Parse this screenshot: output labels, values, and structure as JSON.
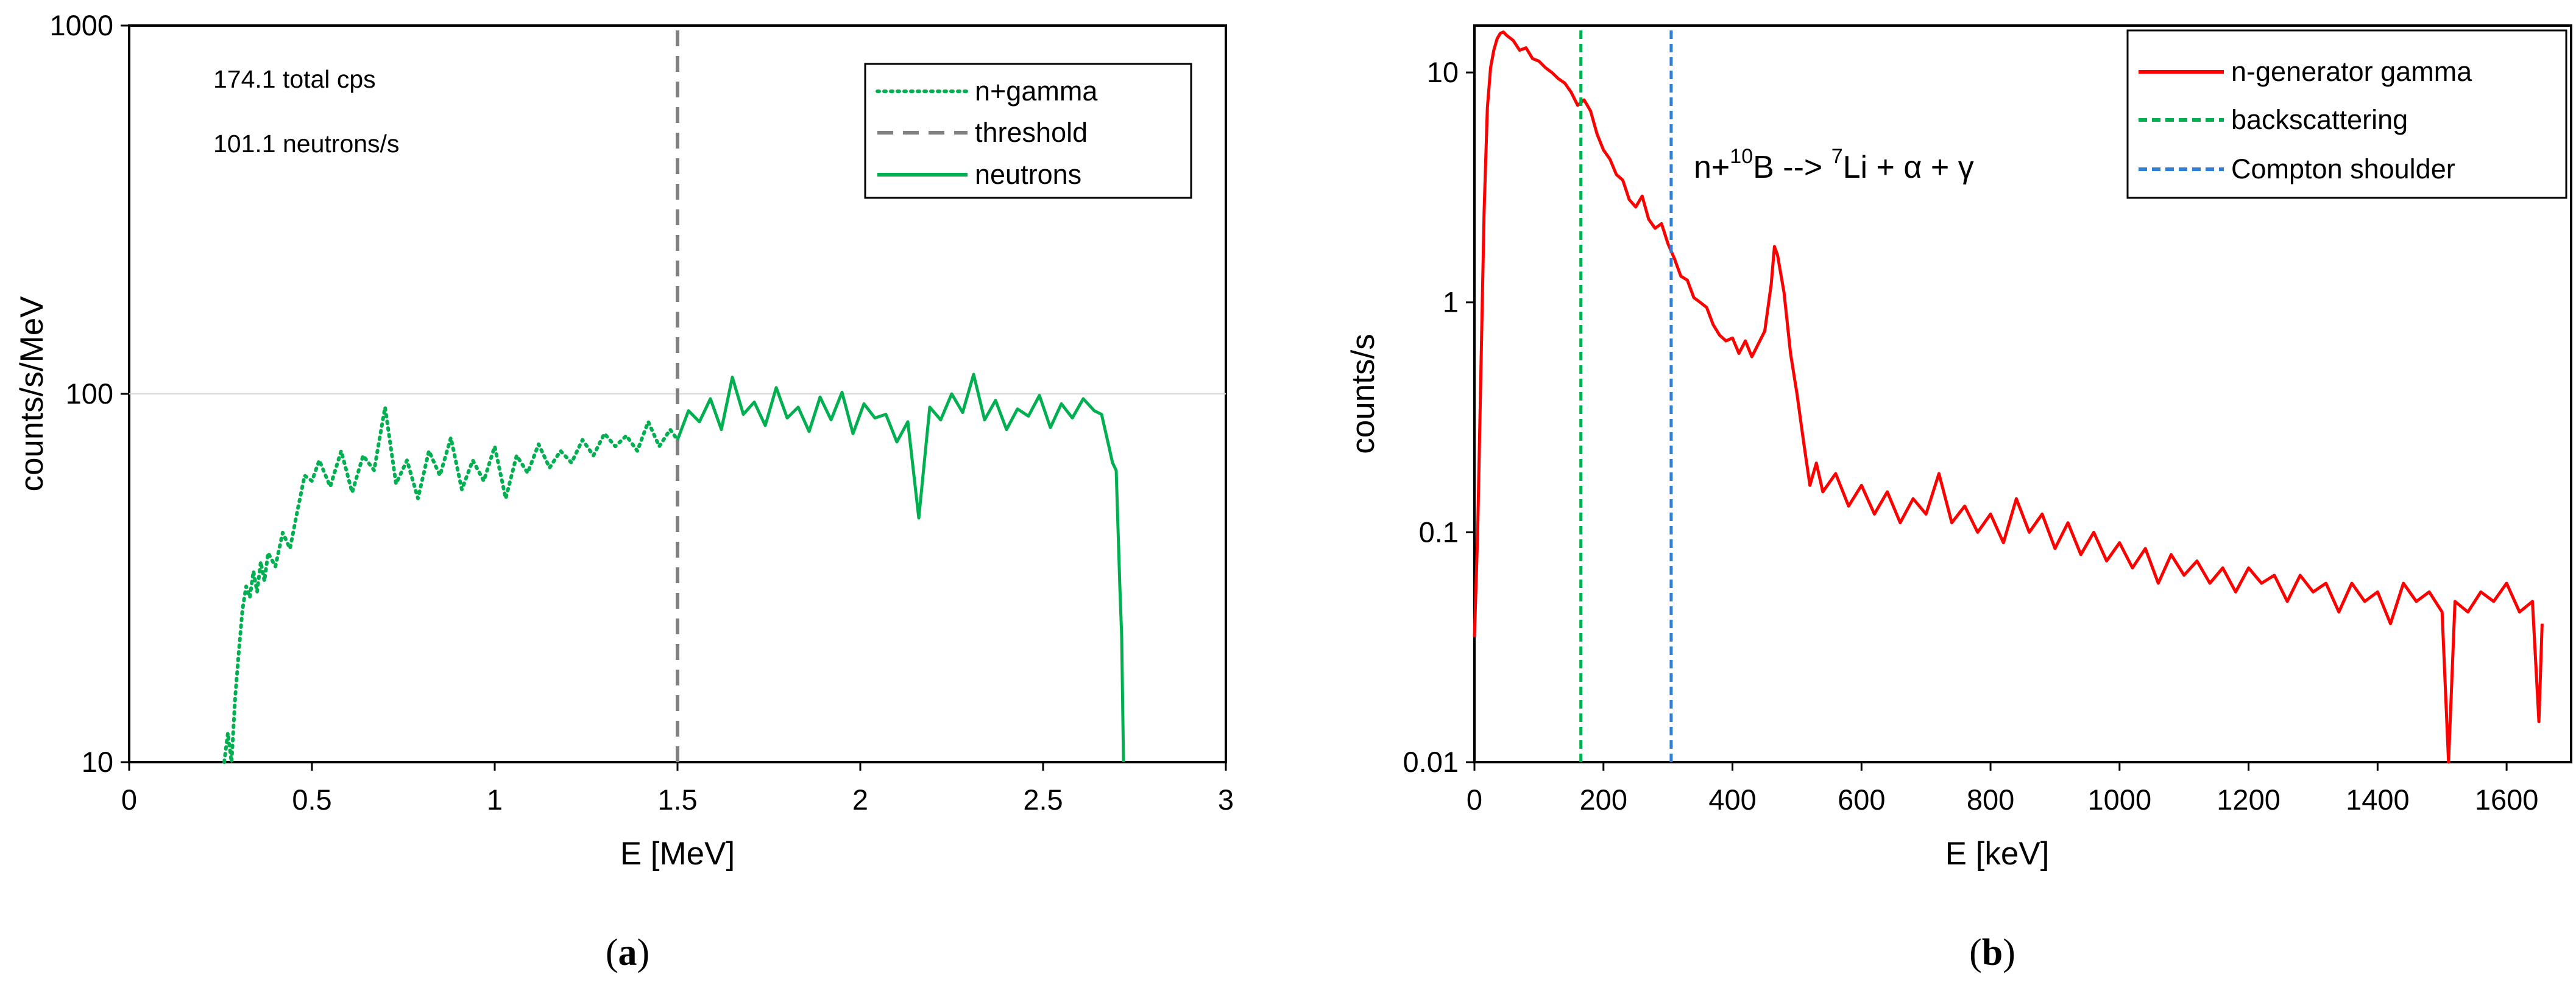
{
  "chart_data": [
    {
      "type": "line",
      "panel": "a",
      "title": "",
      "xlabel": "E [MeV]",
      "ylabel": "counts/s/MeV",
      "xlim": [
        0,
        3
      ],
      "ylim": [
        10,
        1000
      ],
      "yscale": "log",
      "xticks": [
        "0",
        "0.5",
        "1",
        "1.5",
        "2",
        "2.5",
        "3"
      ],
      "xtick_values": [
        0,
        0.5,
        1,
        1.5,
        2,
        2.5,
        3
      ],
      "yticks": [
        "10",
        "100",
        "1000"
      ],
      "ytick_values": [
        10,
        100,
        1000
      ],
      "annotations": [
        "174.1 total cps",
        "101.1 neutrons/s"
      ],
      "legend_position": "top-right",
      "series": [
        {
          "name": "n+gamma",
          "style": "dotted",
          "color": "#00b050",
          "x": [
            0.26,
            0.27,
            0.28,
            0.29,
            0.3,
            0.31,
            0.32,
            0.33,
            0.34,
            0.35,
            0.36,
            0.37,
            0.38,
            0.4,
            0.42,
            0.44,
            0.46,
            0.48,
            0.5,
            0.52,
            0.55,
            0.58,
            0.61,
            0.64,
            0.67,
            0.7,
            0.73,
            0.76,
            0.79,
            0.82,
            0.85,
            0.88,
            0.91,
            0.94,
            0.97,
            1.0,
            1.03,
            1.06,
            1.09,
            1.12,
            1.15,
            1.18,
            1.21,
            1.24,
            1.27,
            1.3,
            1.33,
            1.36,
            1.39,
            1.42,
            1.45,
            1.48,
            1.5
          ],
          "y": [
            10,
            12,
            10,
            15,
            20,
            26,
            30,
            28,
            33,
            29,
            35,
            31,
            37,
            34,
            42,
            38,
            48,
            60,
            58,
            66,
            56,
            70,
            54,
            68,
            62,
            92,
            57,
            66,
            52,
            70,
            60,
            76,
            55,
            66,
            58,
            72,
            52,
            68,
            61,
            73,
            63,
            70,
            65,
            75,
            68,
            78,
            72,
            77,
            70,
            84,
            72,
            80,
            75
          ]
        },
        {
          "name": "threshold",
          "style": "dashed",
          "color": "#808080",
          "x": [
            1.5,
            1.5
          ],
          "y": [
            10,
            1000
          ]
        },
        {
          "name": "neutrons",
          "style": "solid",
          "color": "#00b050",
          "x": [
            1.5,
            1.53,
            1.56,
            1.59,
            1.62,
            1.65,
            1.68,
            1.71,
            1.74,
            1.77,
            1.8,
            1.83,
            1.86,
            1.89,
            1.92,
            1.95,
            1.98,
            2.01,
            2.04,
            2.07,
            2.1,
            2.13,
            2.16,
            2.19,
            2.22,
            2.25,
            2.28,
            2.31,
            2.34,
            2.37,
            2.4,
            2.43,
            2.46,
            2.49,
            2.52,
            2.55,
            2.58,
            2.61,
            2.64,
            2.66,
            2.68,
            2.69,
            2.7,
            2.71,
            2.715,
            2.72
          ],
          "y": [
            75,
            90,
            84,
            97,
            80,
            111,
            88,
            95,
            82,
            104,
            86,
            92,
            79,
            98,
            85,
            101,
            78,
            94,
            86,
            88,
            74,
            84,
            46,
            92,
            85,
            100,
            89,
            113,
            85,
            96,
            80,
            91,
            87,
            99,
            81,
            94,
            86,
            97,
            90,
            88,
            72,
            65,
            62,
            30,
            22,
            10
          ]
        }
      ]
    },
    {
      "type": "line",
      "panel": "b",
      "title": "",
      "xlabel": "E [keV]",
      "ylabel": "counts/s",
      "xlim": [
        0,
        1700
      ],
      "ylim": [
        0.01,
        16
      ],
      "yscale": "log",
      "xticks": [
        "0",
        "200",
        "400",
        "600",
        "800",
        "1000",
        "1200",
        "1400",
        "1600"
      ],
      "xtick_values": [
        0,
        200,
        400,
        600,
        800,
        1000,
        1200,
        1400,
        1600
      ],
      "yticks": [
        "0.01",
        "0.1",
        "1",
        "10"
      ],
      "ytick_values": [
        0.01,
        0.1,
        1,
        10
      ],
      "annotation": {
        "parts": [
          "n+",
          "10",
          "B --> ",
          "7",
          "Li + ",
          "α",
          " + ",
          "γ"
        ]
      },
      "legend_position": "top-right",
      "series": [
        {
          "name": "n-generator gamma",
          "style": "solid",
          "color": "#ff0000",
          "x": [
            0,
            5,
            10,
            15,
            20,
            25,
            30,
            35,
            40,
            45,
            50,
            60,
            70,
            80,
            90,
            100,
            110,
            120,
            130,
            140,
            150,
            160,
            170,
            180,
            190,
            200,
            210,
            220,
            230,
            240,
            250,
            260,
            270,
            280,
            290,
            300,
            310,
            320,
            330,
            340,
            350,
            360,
            370,
            380,
            390,
            400,
            410,
            420,
            430,
            440,
            450,
            460,
            465,
            470,
            480,
            490,
            500,
            510,
            520,
            530,
            540,
            560,
            580,
            600,
            620,
            640,
            660,
            680,
            700,
            720,
            740,
            760,
            780,
            800,
            820,
            840,
            860,
            880,
            900,
            920,
            940,
            960,
            980,
            1000,
            1020,
            1040,
            1060,
            1080,
            1100,
            1120,
            1140,
            1160,
            1180,
            1200,
            1220,
            1240,
            1260,
            1280,
            1300,
            1320,
            1340,
            1360,
            1380,
            1400,
            1420,
            1440,
            1460,
            1480,
            1500,
            1510,
            1520,
            1540,
            1560,
            1580,
            1600,
            1620,
            1640,
            1650,
            1655
          ],
          "y": [
            0.035,
            0.1,
            0.5,
            2.5,
            7,
            10.5,
            12.5,
            14,
            14.8,
            15,
            14.5,
            13.8,
            12.5,
            12.8,
            11.5,
            11.2,
            10.5,
            10,
            9.4,
            9.0,
            8.2,
            7.2,
            7.6,
            6.8,
            5.4,
            4.6,
            4.2,
            3.6,
            3.4,
            2.8,
            2.6,
            2.9,
            2.3,
            2.1,
            2.2,
            1.8,
            1.55,
            1.3,
            1.25,
            1.05,
            1.0,
            0.95,
            0.8,
            0.72,
            0.68,
            0.7,
            0.6,
            0.68,
            0.58,
            0.66,
            0.75,
            1.2,
            1.75,
            1.6,
            1.1,
            0.6,
            0.4,
            0.25,
            0.16,
            0.2,
            0.15,
            0.18,
            0.13,
            0.16,
            0.12,
            0.15,
            0.11,
            0.14,
            0.12,
            0.18,
            0.11,
            0.13,
            0.1,
            0.12,
            0.09,
            0.14,
            0.1,
            0.12,
            0.085,
            0.11,
            0.08,
            0.1,
            0.075,
            0.09,
            0.07,
            0.085,
            0.06,
            0.08,
            0.065,
            0.075,
            0.06,
            0.07,
            0.055,
            0.07,
            0.06,
            0.065,
            0.05,
            0.065,
            0.055,
            0.06,
            0.045,
            0.06,
            0.05,
            0.055,
            0.04,
            0.06,
            0.05,
            0.055,
            0.045,
            0.01,
            0.05,
            0.045,
            0.055,
            0.05,
            0.06,
            0.045,
            0.05,
            0.015,
            0.04
          ]
        },
        {
          "name": "backscattering",
          "style": "dashed",
          "color": "#00b050",
          "x": [
            165,
            165
          ],
          "y": [
            0.01,
            16
          ]
        },
        {
          "name": "Compton shoulder",
          "style": "dashed",
          "color": "#2f7fd6",
          "x": [
            305,
            305
          ],
          "y": [
            0.01,
            16
          ]
        }
      ]
    }
  ],
  "panel_labels": [
    "a",
    "b"
  ]
}
